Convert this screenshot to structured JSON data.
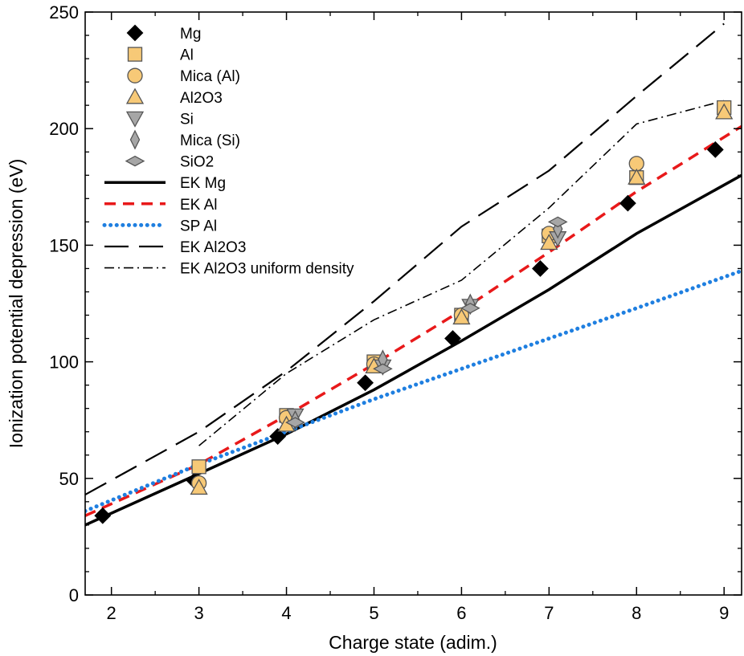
{
  "chart_data": {
    "type": "scatter",
    "title": "",
    "xlabel": "Charge state (adim.)",
    "ylabel": "Ionization potential depression (eV)",
    "xlim": [
      1.7,
      9.2
    ],
    "ylim": [
      0,
      250
    ],
    "x_ticks": [
      2,
      3,
      4,
      5,
      6,
      7,
      8,
      9
    ],
    "y_ticks": [
      0,
      50,
      100,
      150,
      200,
      250
    ],
    "grid": false,
    "legend_position": "top-left",
    "series": [
      {
        "name": "Mg",
        "kind": "marker",
        "marker": "diamond",
        "color": "#000000",
        "edge": "#000000",
        "points": [
          [
            1.9,
            34
          ],
          [
            2.95,
            49
          ],
          [
            3.9,
            68
          ],
          [
            4.9,
            91
          ],
          [
            5.9,
            110
          ],
          [
            6.9,
            140
          ],
          [
            7.9,
            168
          ],
          [
            8.9,
            191
          ]
        ]
      },
      {
        "name": "Al",
        "kind": "marker",
        "marker": "square",
        "color": "#F7C977",
        "edge": "#555555",
        "points": [
          [
            3.0,
            55
          ],
          [
            4.0,
            77
          ],
          [
            5.0,
            100
          ],
          [
            6.0,
            120
          ],
          [
            7.0,
            154
          ],
          [
            8.0,
            179
          ],
          [
            9.0,
            209
          ]
        ]
      },
      {
        "name": "Mica (Al)",
        "kind": "marker",
        "marker": "circle",
        "color": "#F7C977",
        "edge": "#555555",
        "points": [
          [
            3.0,
            48
          ],
          [
            4.0,
            76
          ],
          [
            5.0,
            99
          ],
          [
            6.0,
            120
          ],
          [
            7.0,
            155
          ],
          [
            8.0,
            185
          ]
        ]
      },
      {
        "name": "Al2O3",
        "kind": "marker",
        "marker": "triangle-up",
        "color": "#F7C977",
        "edge": "#555555",
        "points": [
          [
            3.0,
            46
          ],
          [
            4.0,
            73
          ],
          [
            5.0,
            98
          ],
          [
            6.0,
            119
          ],
          [
            7.0,
            151
          ],
          [
            8.0,
            179
          ],
          [
            9.0,
            207
          ]
        ]
      },
      {
        "name": "Si",
        "kind": "marker",
        "marker": "triangle-down",
        "color": "#A6A6A6",
        "edge": "#555555",
        "points": [
          [
            4.1,
            77
          ],
          [
            5.1,
            98
          ],
          [
            6.1,
            124
          ],
          [
            7.1,
            153
          ]
        ]
      },
      {
        "name": "Mica (Si)",
        "kind": "marker",
        "marker": "thin-diamond",
        "color": "#A6A6A6",
        "edge": "#555555",
        "points": [
          [
            4.1,
            75
          ],
          [
            5.1,
            101
          ],
          [
            6.1,
            125
          ],
          [
            7.1,
            157
          ]
        ]
      },
      {
        "name": "SiO2",
        "kind": "marker",
        "marker": "wide-diamond",
        "color": "#A6A6A6",
        "edge": "#555555",
        "points": [
          [
            4.1,
            74
          ],
          [
            5.1,
            97
          ],
          [
            6.1,
            123
          ],
          [
            7.1,
            160
          ]
        ]
      },
      {
        "name": "EK Mg",
        "kind": "line",
        "style": "solid",
        "color": "#000000",
        "width": 3.5,
        "points": [
          [
            1.7,
            30
          ],
          [
            3.0,
            52
          ],
          [
            4.0,
            69
          ],
          [
            5.0,
            88
          ],
          [
            6.0,
            109
          ],
          [
            7.0,
            131
          ],
          [
            8.0,
            155
          ],
          [
            9.2,
            180
          ]
        ]
      },
      {
        "name": "EK Al",
        "kind": "line",
        "style": "dashed",
        "color": "#E8191A",
        "width": 3.5,
        "points": [
          [
            1.7,
            34
          ],
          [
            3.0,
            56
          ],
          [
            4.0,
            77
          ],
          [
            5.0,
            99
          ],
          [
            6.0,
            122
          ],
          [
            7.0,
            147
          ],
          [
            8.0,
            173
          ],
          [
            9.2,
            201
          ]
        ]
      },
      {
        "name": "SP Al",
        "kind": "line",
        "style": "dotted",
        "color": "#1F7FE0",
        "width": 5,
        "points": [
          [
            1.7,
            36
          ],
          [
            3.0,
            56
          ],
          [
            4.0,
            70
          ],
          [
            5.0,
            84
          ],
          [
            6.0,
            97
          ],
          [
            7.0,
            110
          ],
          [
            8.0,
            123
          ],
          [
            9.2,
            139
          ]
        ]
      },
      {
        "name": "EK Al2O3",
        "kind": "line",
        "style": "longdash",
        "color": "#000000",
        "width": 2.2,
        "points": [
          [
            1.7,
            43
          ],
          [
            3.0,
            70
          ],
          [
            4.0,
            96
          ],
          [
            5.0,
            126
          ],
          [
            6.0,
            158
          ],
          [
            7.0,
            182
          ],
          [
            8.0,
            214
          ],
          [
            9.0,
            245
          ]
        ]
      },
      {
        "name": "EK Al2O3 uniform density",
        "kind": "line",
        "style": "dashdot",
        "color": "#000000",
        "width": 1.6,
        "points": [
          [
            3.0,
            64
          ],
          [
            4.0,
            95
          ],
          [
            5.0,
            118
          ],
          [
            6.0,
            135
          ],
          [
            7.0,
            166
          ],
          [
            8.0,
            202
          ],
          [
            9.0,
            212
          ]
        ]
      }
    ]
  }
}
